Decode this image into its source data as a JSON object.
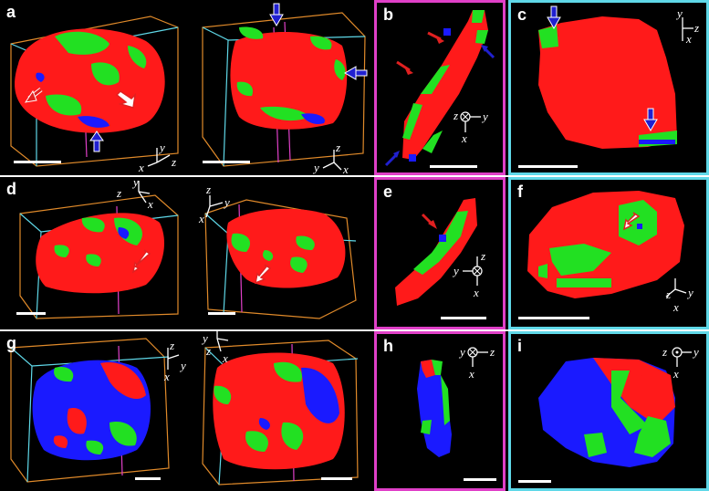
{
  "figure": {
    "rows": [
      {
        "label_left": "a",
        "label_mid": "b",
        "label_right": "c",
        "axes_3d_left": [
          "y",
          "x",
          "z"
        ],
        "axes_3d_right": [
          "z",
          "y",
          "x"
        ],
        "axes_mid": [
          "z",
          "y",
          "x"
        ],
        "axes_right": [
          "y",
          "z",
          "x"
        ]
      },
      {
        "label_left": "d",
        "label_mid": "e",
        "label_right": "f",
        "axes_3d_left": [
          "z",
          "y",
          "x"
        ],
        "axes_3d_right": [
          "z",
          "x",
          "y"
        ],
        "axes_mid": [
          "z",
          "y",
          "x"
        ],
        "axes_right": [
          "z",
          "y",
          "x"
        ]
      },
      {
        "label_left": "g",
        "label_mid": "h",
        "label_right": "i",
        "axes_3d_left": [
          "z",
          "x",
          "y"
        ],
        "axes_3d_right": [
          "y",
          "z",
          "x"
        ],
        "axes_mid": [
          "y",
          "z",
          "x"
        ],
        "axes_right": [
          "z",
          "y",
          "x"
        ]
      }
    ],
    "colors": {
      "red": "#ff1a1a",
      "green": "#22e022",
      "blue": "#1a1aff",
      "frame_magenta": "#e040c8",
      "frame_cyan": "#5fd8e8",
      "box_orange": "#e08a2a",
      "arrow_red": "#e02020",
      "arrow_blue": "#2020d0"
    }
  }
}
